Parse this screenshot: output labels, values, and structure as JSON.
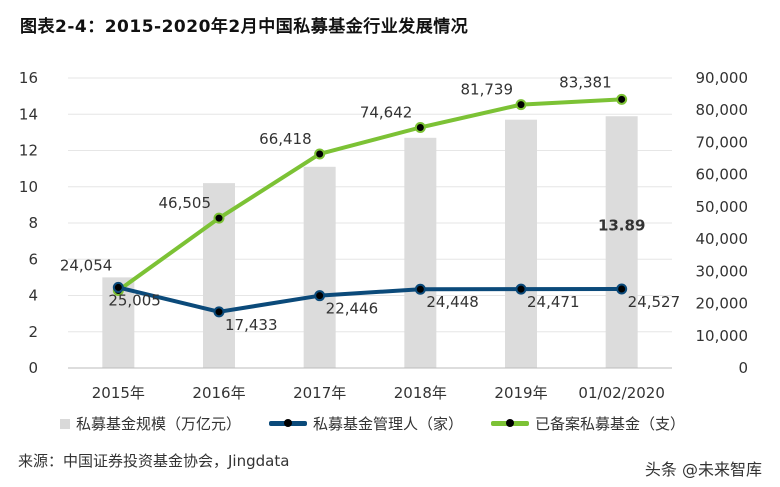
{
  "title": "图表2-4：2015-2020年2月中国私募基金行业发展情况",
  "chart_data": {
    "type": "bar+line",
    "categories": [
      "2015年",
      "2016年",
      "2017年",
      "2018年",
      "2019年",
      "01/02/2020"
    ],
    "series": [
      {
        "name": "私募基金规模（万亿元）",
        "type": "bar",
        "axis": "left",
        "color": "#dcdcdc",
        "values": [
          5.0,
          10.2,
          11.1,
          12.7,
          13.7,
          13.89
        ],
        "data_labels": [
          "",
          "",
          "",
          "",
          "",
          "13.89"
        ]
      },
      {
        "name": "私募基金管理人（家）",
        "type": "line",
        "axis": "right",
        "color": "#0b4a7a",
        "values": [
          25005,
          17433,
          22446,
          24448,
          24471,
          24527
        ],
        "data_labels": [
          "25,005",
          "17,433",
          "22,446",
          "24,448",
          "24,471",
          "24,527"
        ]
      },
      {
        "name": "已备案私募基金（支）",
        "type": "line",
        "axis": "right",
        "color": "#7cc235",
        "values": [
          24054,
          46505,
          66418,
          74642,
          81739,
          83381
        ],
        "data_labels": [
          "24,054",
          "46,505",
          "66,418",
          "74,642",
          "81,739",
          "83,381"
        ]
      }
    ],
    "left_axis": {
      "ylim": [
        0,
        16
      ],
      "ticks": [
        "0",
        "2",
        "4",
        "6",
        "8",
        "10",
        "12",
        "14",
        "16"
      ]
    },
    "right_axis": {
      "ylim": [
        0,
        90000
      ],
      "ticks": [
        "0",
        "10,000",
        "20,000",
        "30,000",
        "40,000",
        "50,000",
        "60,000",
        "70,000",
        "80,000",
        "90,000"
      ]
    },
    "grid": true,
    "legend": "bottom"
  },
  "source": "来源：中国证券投资基金协会，Jingdata",
  "watermark": "头条 @未来智库"
}
